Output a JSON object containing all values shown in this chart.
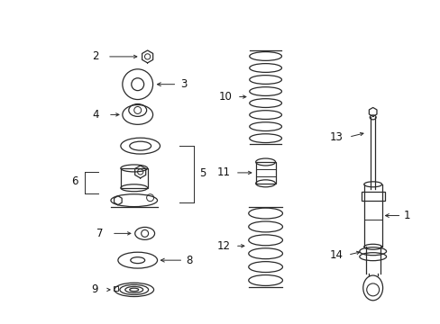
{
  "bg_color": "#ffffff",
  "fig_width": 4.89,
  "fig_height": 3.6,
  "dpi": 100,
  "line_color": "#2a2a2a",
  "label_fontsize": 8.5
}
